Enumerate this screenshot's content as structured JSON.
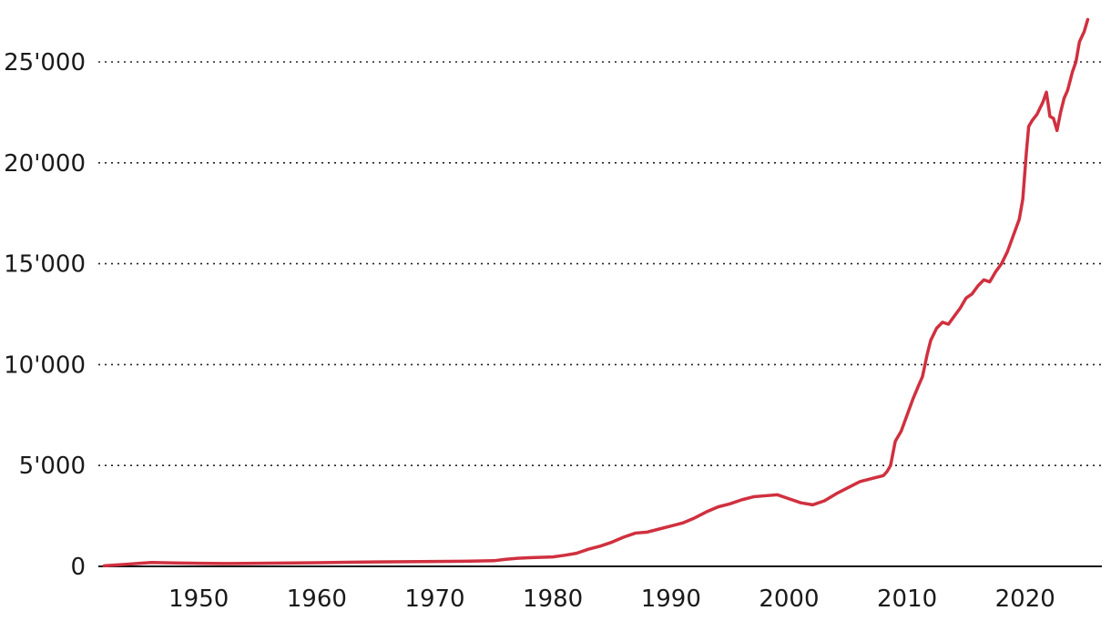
{
  "chart_data": {
    "type": "line",
    "title": "",
    "xlabel": "",
    "ylabel": "",
    "xlim": [
      1941.5,
      2026.5
    ],
    "ylim": [
      0,
      27000
    ],
    "y_ticks": [
      {
        "value": 0,
        "label": "0"
      },
      {
        "value": 5000,
        "label": "5'000"
      },
      {
        "value": 10000,
        "label": "10'000"
      },
      {
        "value": 15000,
        "label": "15'000"
      },
      {
        "value": 20000,
        "label": "20'000"
      },
      {
        "value": 25000,
        "label": "25'000"
      }
    ],
    "x_ticks": [
      {
        "value": 1950,
        "label": "1950"
      },
      {
        "value": 1960,
        "label": "1960"
      },
      {
        "value": 1970,
        "label": "1970"
      },
      {
        "value": 1980,
        "label": "1980"
      },
      {
        "value": 1990,
        "label": "1990"
      },
      {
        "value": 2000,
        "label": "2000"
      },
      {
        "value": 2010,
        "label": "2010"
      },
      {
        "value": 2020,
        "label": "2020"
      }
    ],
    "grid": "horizontal dotted",
    "legend": "none",
    "series": [
      {
        "color": "#d0303f",
        "x": [
          1942,
          1943,
          1944,
          1945,
          1946,
          1947,
          1948,
          1950,
          1952,
          1955,
          1960,
          1965,
          1970,
          1973,
          1975,
          1976,
          1977,
          1978,
          1980,
          1981,
          1982,
          1983,
          1984,
          1985,
          1986,
          1987,
          1988,
          1989,
          1990,
          1991,
          1992,
          1993,
          1994,
          1995,
          1996,
          1997,
          1998,
          1999,
          2000,
          2001,
          2002,
          2003,
          2004,
          2005,
          2006,
          2007,
          2008,
          2008.3,
          2008.6,
          2009,
          2009.5,
          2010,
          2010.5,
          2011,
          2011.3,
          2011.7,
          2012,
          2012.5,
          2013,
          2013.5,
          2014,
          2014.5,
          2015,
          2015.5,
          2016,
          2016.5,
          2017,
          2017.5,
          2018,
          2018.5,
          2019,
          2019.5,
          2019.8,
          2020.1,
          2020.3,
          2020.6,
          2021,
          2021.5,
          2021.8,
          2022.1,
          2022.4,
          2022.7,
          2023,
          2023.3,
          2023.6,
          2024,
          2024.3,
          2024.6,
          2025,
          2025.3
        ],
        "y": [
          30,
          70,
          110,
          150,
          190,
          180,
          170,
          150,
          140,
          150,
          180,
          220,
          240,
          260,
          280,
          350,
          400,
          430,
          470,
          550,
          650,
          850,
          1000,
          1200,
          1450,
          1650,
          1700,
          1850,
          2000,
          2150,
          2400,
          2700,
          2950,
          3100,
          3300,
          3450,
          3500,
          3550,
          3350,
          3150,
          3050,
          3250,
          3600,
          3900,
          4200,
          4350,
          4500,
          4700,
          5000,
          6200,
          6700,
          7500,
          8300,
          9000,
          9400,
          10500,
          11200,
          11800,
          12100,
          12000,
          12400,
          12800,
          13300,
          13500,
          13900,
          14200,
          14100,
          14600,
          15000,
          15600,
          16400,
          17200,
          18200,
          20500,
          21800,
          22100,
          22400,
          23000,
          23500,
          22300,
          22200,
          21600,
          22500,
          23200,
          23600,
          24500,
          25000,
          26000,
          26500,
          27100
        ]
      }
    ]
  }
}
